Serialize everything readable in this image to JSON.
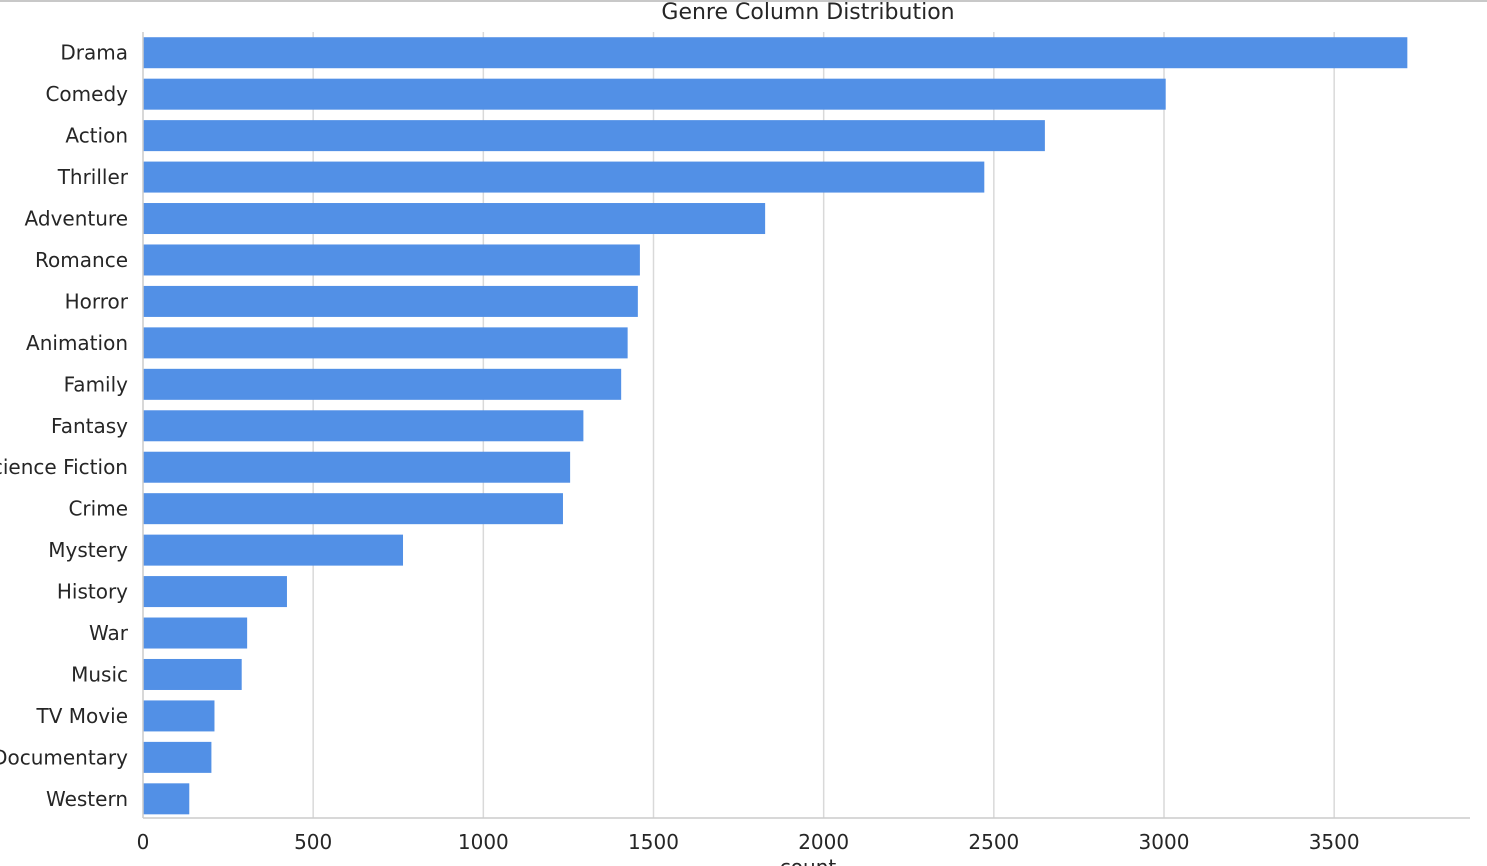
{
  "chart_data": {
    "type": "bar",
    "orientation": "horizontal",
    "title": "Genre Column Distribution",
    "xlabel": "count",
    "ylabel": "",
    "xlim": [
      0,
      3900
    ],
    "xticks": [
      0,
      500,
      1000,
      1500,
      2000,
      2500,
      3000,
      3500
    ],
    "grid": "vertical",
    "bar_color": "#5290e6",
    "categories": [
      "Drama",
      "Comedy",
      "Action",
      "Thriller",
      "Adventure",
      "Romance",
      "Horror",
      "Animation",
      "Family",
      "Fantasy",
      "Science Fiction",
      "Crime",
      "Mystery",
      "History",
      "War",
      "Music",
      "TV Movie",
      "Documentary",
      "Western"
    ],
    "values": [
      3715,
      3005,
      2650,
      2472,
      1828,
      1460,
      1454,
      1424,
      1405,
      1294,
      1255,
      1234,
      764,
      423,
      306,
      290,
      210,
      201,
      136
    ]
  }
}
